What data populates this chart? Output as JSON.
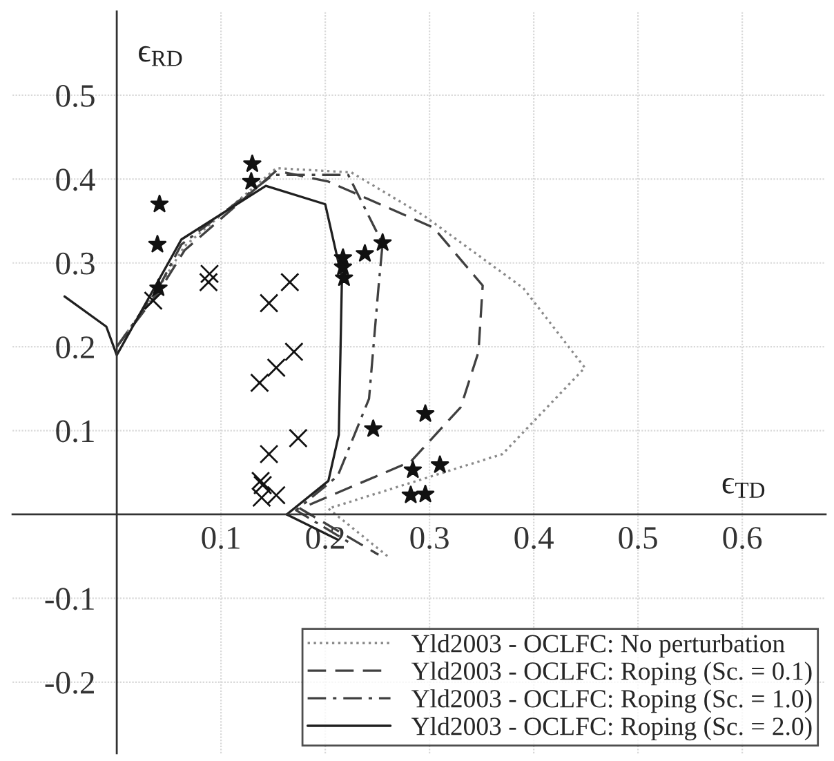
{
  "chart_data": {
    "type": "line",
    "xlabel": "ϵ$_{TD}$",
    "ylabel": "ϵ$_{RD}$",
    "xlim": [
      -0.1,
      0.68
    ],
    "ylim": [
      -0.285,
      0.6
    ],
    "xticks": [
      0.1,
      0.2,
      0.3,
      0.4,
      0.5,
      0.6
    ],
    "yticks": [
      -0.2,
      -0.1,
      0.1,
      0.2,
      0.3,
      0.4,
      0.5
    ],
    "grid": true,
    "legend": "bottom right",
    "series": [
      {
        "name": "Yld2003 - OCLFC: No perturbation",
        "line_style": "dotted",
        "color": "#8a8a8a",
        "x": [
          0,
          0.04,
          0.065,
          0.153,
          0.225,
          0.295,
          0.39,
          0.449,
          0.37,
          0.203,
          0.26
        ],
        "values": [
          0.2,
          0.27,
          0.32,
          0.413,
          0.408,
          0.356,
          0.27,
          0.175,
          0.072,
          0.007,
          -0.05
        ]
      },
      {
        "name": "Yld2003 - OCLFC: Roping (Sc. = 0.1)",
        "line_style": "dashed",
        "color": "#404040",
        "x": [
          0,
          0.04,
          0.065,
          0.153,
          0.203,
          0.304,
          0.351,
          0.347,
          0.33,
          0.282,
          0.176,
          0.251
        ],
        "values": [
          0.2,
          0.265,
          0.315,
          0.41,
          0.397,
          0.342,
          0.273,
          0.194,
          0.128,
          0.063,
          0.007,
          -0.048
        ]
      },
      {
        "name": "Yld2003 - OCLFC: Roping (Sc. = 1.0)",
        "line_style": "dashdot",
        "color": "#404040",
        "x": [
          0,
          0.04,
          0.062,
          0.15,
          0.222,
          0.255,
          0.251,
          0.242,
          0.212,
          0.172,
          0.225
        ],
        "values": [
          0.2,
          0.27,
          0.322,
          0.405,
          0.405,
          0.323,
          0.27,
          0.138,
          0.046,
          0.005,
          -0.035
        ]
      },
      {
        "name": "Yld2003 - OCLFC: Roping (Sc. = 2.0)",
        "line_style": "solid",
        "color": "#202020",
        "x": [
          -0.05,
          -0.01,
          0,
          0.062,
          0.143,
          0.2,
          0.216,
          0.213,
          0.203,
          0.163,
          0.212
        ],
        "values": [
          0.26,
          0.224,
          0.19,
          0.328,
          0.392,
          0.37,
          0.282,
          0.095,
          0.04,
          0,
          -0.03
        ]
      },
      {
        "type": "scatter",
        "marker": "star",
        "color": "#111111",
        "x": [
          0.041,
          0.039,
          0.04,
          0.13,
          0.129,
          0.217,
          0.217,
          0.218,
          0.238,
          0.255,
          0.246,
          0.296,
          0.284,
          0.31,
          0.282,
          0.296
        ],
        "values": [
          0.37,
          0.322,
          0.27,
          0.418,
          0.397,
          0.306,
          0.295,
          0.282,
          0.311,
          0.324,
          0.102,
          0.12,
          0.053,
          0.059,
          0.023,
          0.024
        ]
      },
      {
        "type": "scatter",
        "marker": "cross",
        "color": "#111111",
        "x": [
          0.035,
          0.089,
          0.088,
          0.166,
          0.146,
          0.17,
          0.153,
          0.137,
          0.174,
          0.146,
          0.138,
          0.14,
          0.153,
          0.139
        ],
        "values": [
          0.255,
          0.287,
          0.277,
          0.277,
          0.252,
          0.194,
          0.175,
          0.157,
          0.091,
          0.072,
          0.04,
          0.035,
          0.023,
          0.02
        ]
      }
    ]
  }
}
